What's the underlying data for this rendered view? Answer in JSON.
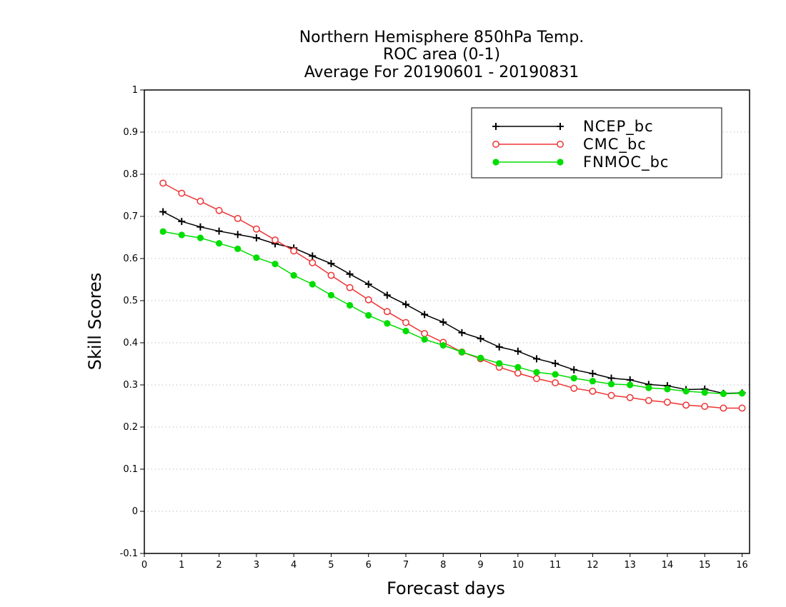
{
  "chart_data": {
    "type": "line",
    "title_lines": [
      "Northern Hemisphere 850hPa Temp.",
      "ROC area (0-1)",
      "Average For 20190601 - 20190831"
    ],
    "xlabel": "Forecast days",
    "ylabel": "Skill Scores",
    "xlim": [
      0,
      16.2
    ],
    "ylim": [
      -0.1,
      1
    ],
    "x_ticks": [
      0,
      1,
      2,
      3,
      4,
      5,
      6,
      7,
      8,
      9,
      10,
      11,
      12,
      13,
      14,
      15,
      16
    ],
    "x_tick_labels": [
      "0",
      "1",
      "2",
      "3",
      "4",
      "5",
      "6",
      "7",
      "8",
      "9",
      "10",
      "11",
      "12",
      "13",
      "14",
      "15",
      "16"
    ],
    "y_ticks": [
      -0.1,
      0,
      0.1,
      0.2,
      0.3,
      0.4,
      0.5,
      0.6,
      0.7,
      0.8,
      0.9,
      1
    ],
    "y_tick_labels": [
      "-0.1",
      "0",
      "0.1",
      "0.2",
      "0.3",
      "0.4",
      "0.5",
      "0.6",
      "0.7",
      "0.8",
      "0.9",
      "1"
    ],
    "grid": "horizontal dotted",
    "legend_position": "top-right",
    "x": [
      0.5,
      1,
      1.5,
      2,
      2.5,
      3,
      3.5,
      4,
      4.5,
      5,
      5.5,
      6,
      6.5,
      7,
      7.5,
      8,
      8.5,
      9,
      9.5,
      10,
      10.5,
      11,
      11.5,
      12,
      12.5,
      13,
      13.5,
      14,
      14.5,
      15,
      15.5,
      16
    ],
    "series": [
      {
        "name": "NCEP_bc",
        "color": "#000000",
        "marker": "plus",
        "values": [
          0.711,
          0.688,
          0.675,
          0.665,
          0.657,
          0.649,
          0.635,
          0.625,
          0.606,
          0.588,
          0.563,
          0.539,
          0.513,
          0.491,
          0.467,
          0.449,
          0.424,
          0.41,
          0.39,
          0.38,
          0.362,
          0.351,
          0.336,
          0.327,
          0.316,
          0.312,
          0.301,
          0.298,
          0.289,
          0.29,
          0.28,
          0.281
        ]
      },
      {
        "name": "CMC_bc",
        "color": "#ee3333",
        "marker": "open-circle",
        "values": [
          0.779,
          0.755,
          0.736,
          0.714,
          0.695,
          0.67,
          0.644,
          0.618,
          0.59,
          0.56,
          0.531,
          0.502,
          0.474,
          0.448,
          0.422,
          0.401,
          0.378,
          0.362,
          0.342,
          0.328,
          0.315,
          0.305,
          0.292,
          0.285,
          0.275,
          0.27,
          0.263,
          0.259,
          0.252,
          0.249,
          0.245,
          0.245
        ]
      },
      {
        "name": "FNMOC_bc",
        "color": "#00dd00",
        "marker": "filled-circle",
        "values": [
          0.664,
          0.656,
          0.649,
          0.636,
          0.623,
          0.602,
          0.587,
          0.56,
          0.539,
          0.513,
          0.489,
          0.465,
          0.446,
          0.428,
          0.408,
          0.394,
          0.378,
          0.364,
          0.351,
          0.342,
          0.33,
          0.325,
          0.316,
          0.309,
          0.302,
          0.3,
          0.293,
          0.29,
          0.285,
          0.282,
          0.279,
          0.28
        ]
      }
    ]
  }
}
